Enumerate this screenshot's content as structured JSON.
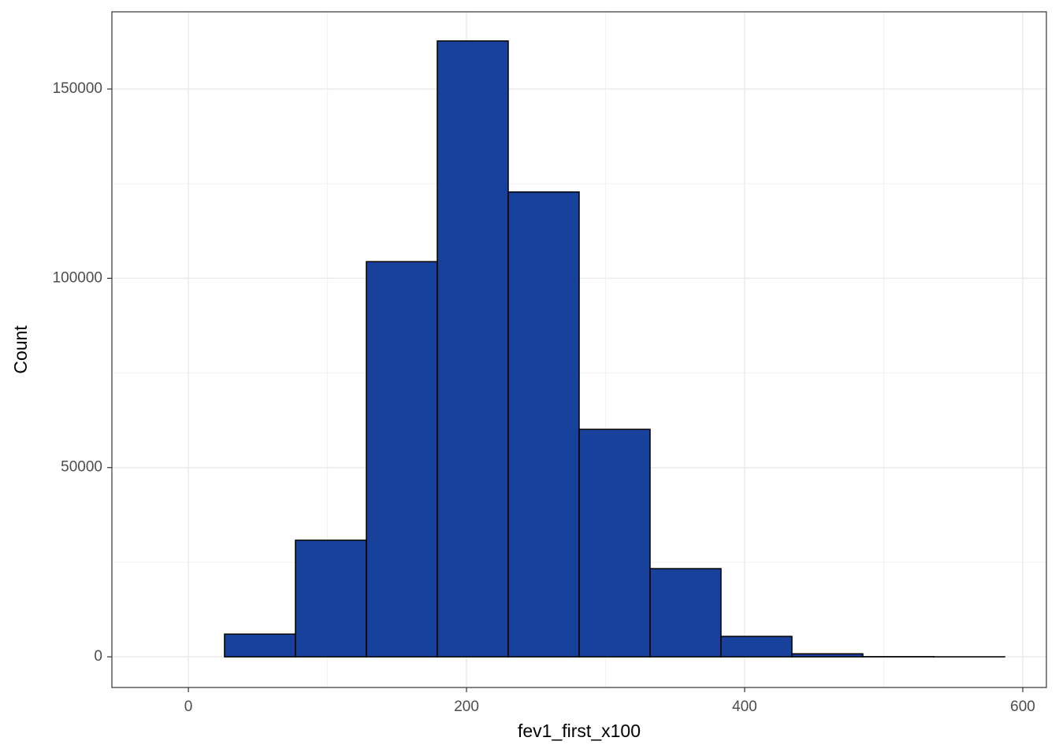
{
  "chart_data": {
    "type": "histogram",
    "x_label": "fev1_first_x100",
    "y_label": "Count",
    "bins": [
      -25,
      26,
      77,
      128,
      179,
      230,
      281,
      332,
      383,
      434,
      485,
      536,
      587
    ],
    "values": [
      0,
      6000,
      30800,
      104400,
      162700,
      122800,
      60100,
      23300,
      5400,
      800,
      50,
      10
    ],
    "color": "#17419a",
    "xlim": [
      -55,
      617
    ],
    "xticks": [
      0,
      200,
      400,
      600
    ],
    "ylim": [
      -8100,
      170400
    ],
    "yticks": [
      0,
      50000,
      100000,
      150000
    ],
    "grid": true
  }
}
